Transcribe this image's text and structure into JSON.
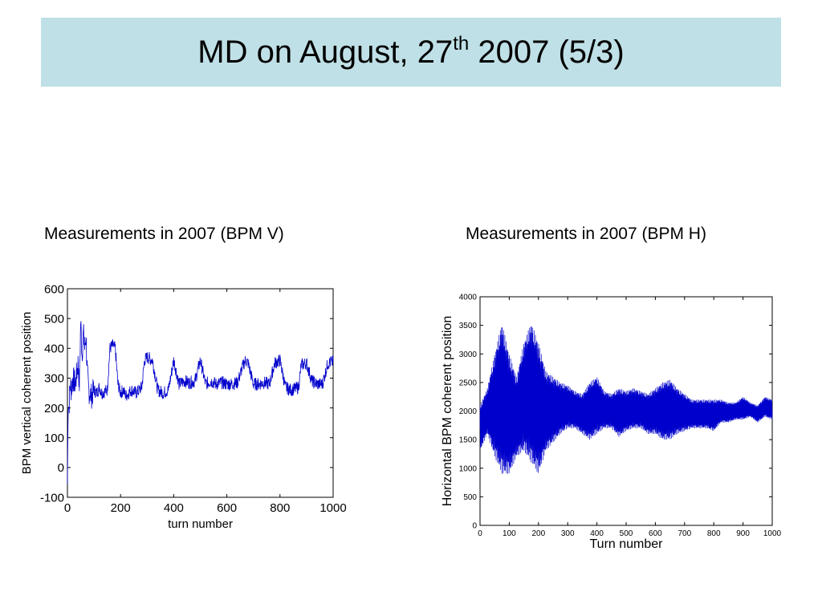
{
  "title": {
    "main": "MD on August, 27",
    "superscript": "th",
    "rest": " 2007 (5/3)"
  },
  "captions": {
    "left": "Measurements in 2007 (BPM V)",
    "right": "Measurements in 2007 (BPM H)"
  },
  "colors": {
    "title_background": "#bfe0e6",
    "series_line": "#0000cc"
  },
  "chart_data": [
    {
      "type": "line",
      "title": "",
      "xlabel": "turn number",
      "ylabel": "BPM vertical coherent position",
      "xlim": [
        0,
        1000
      ],
      "ylim": [
        -100,
        600
      ],
      "xticks": [
        0,
        200,
        400,
        600,
        800,
        1000
      ],
      "yticks": [
        -100,
        0,
        100,
        200,
        300,
        400,
        500,
        600
      ],
      "grid": false,
      "legend": "none",
      "series": [
        {
          "x": [
            0,
            3,
            6,
            10,
            15,
            20,
            30,
            40,
            45,
            50,
            55,
            60,
            65,
            70,
            75,
            80,
            90,
            100,
            110,
            120,
            130,
            150,
            160,
            170,
            180,
            190,
            200,
            210,
            220,
            240,
            260,
            280,
            290,
            300,
            320,
            340,
            360,
            380,
            400,
            420,
            440,
            460,
            480,
            500,
            520,
            540,
            560,
            580,
            600,
            620,
            640,
            660,
            670,
            680,
            700,
            720,
            740,
            760,
            780,
            800,
            820,
            840,
            860,
            870,
            880,
            900,
            920,
            940,
            960,
            980,
            1000
          ],
          "values": [
            -55,
            230,
            200,
            280,
            260,
            300,
            280,
            350,
            280,
            490,
            380,
            450,
            400,
            440,
            310,
            260,
            240,
            260,
            250,
            270,
            250,
            260,
            400,
            410,
            400,
            280,
            250,
            260,
            240,
            260,
            250,
            270,
            360,
            370,
            360,
            260,
            250,
            260,
            360,
            280,
            290,
            285,
            290,
            360,
            280,
            290,
            280,
            285,
            280,
            280,
            285,
            340,
            360,
            350,
            280,
            280,
            285,
            280,
            350,
            360,
            270,
            260,
            265,
            270,
            345,
            350,
            290,
            280,
            280,
            350,
            355
          ]
        }
      ]
    },
    {
      "type": "line",
      "title": "",
      "xlabel": "Turn number",
      "ylabel": "Horizontal BPM coherent position",
      "xlim": [
        0,
        1000
      ],
      "ylim": [
        0,
        4000
      ],
      "xticks": [
        0,
        100,
        200,
        300,
        400,
        500,
        600,
        700,
        800,
        900,
        1000
      ],
      "yticks": [
        0,
        500,
        1000,
        1500,
        2000,
        2500,
        3000,
        3500,
        4000
      ],
      "grid": false,
      "legend": "none",
      "series": [
        {
          "x": [
            0,
            25,
            50,
            75,
            100,
            125,
            150,
            175,
            200,
            225,
            250,
            275,
            300,
            325,
            350,
            375,
            400,
            425,
            450,
            475,
            500,
            525,
            550,
            575,
            600,
            625,
            650,
            675,
            700,
            725,
            750,
            775,
            800,
            825,
            850,
            875,
            900,
            925,
            950,
            975,
            1000
          ],
          "upper": [
            2100,
            2400,
            3000,
            3550,
            3000,
            2600,
            3200,
            3550,
            3200,
            2700,
            2600,
            2500,
            2450,
            2350,
            2300,
            2500,
            2600,
            2350,
            2300,
            2400,
            2350,
            2400,
            2350,
            2300,
            2400,
            2500,
            2550,
            2400,
            2300,
            2200,
            2200,
            2200,
            2200,
            2200,
            2150,
            2150,
            2250,
            2150,
            2100,
            2250,
            2200
          ],
          "lower": [
            1300,
            1600,
            1200,
            900,
            900,
            1200,
            1300,
            1100,
            900,
            1300,
            1450,
            1600,
            1700,
            1700,
            1600,
            1500,
            1600,
            1700,
            1700,
            1550,
            1650,
            1700,
            1700,
            1600,
            1600,
            1500,
            1500,
            1600,
            1650,
            1700,
            1700,
            1700,
            1650,
            1800,
            1800,
            1850,
            1850,
            1900,
            1800,
            1900,
            1850
          ]
        }
      ]
    }
  ]
}
